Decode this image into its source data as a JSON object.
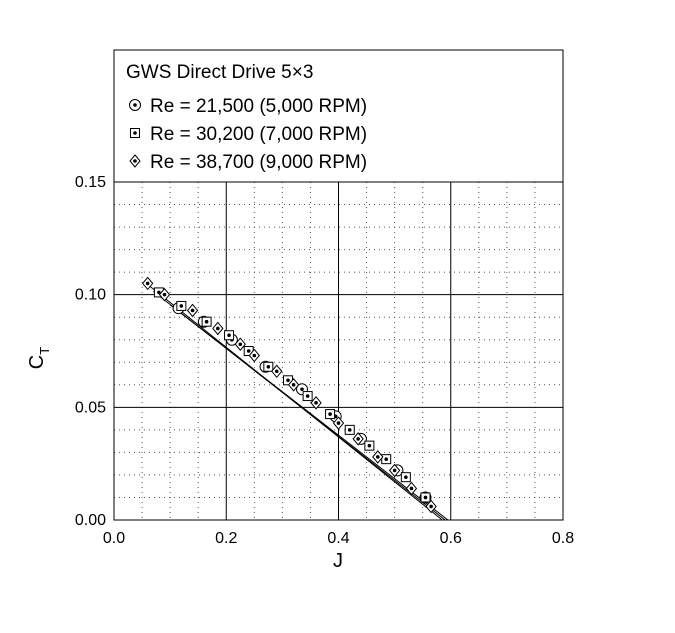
{
  "chart_data": {
    "type": "scatter",
    "title": "GWS Direct Drive 5×3",
    "xlabel": "J",
    "ylabel": {
      "main": "C",
      "sub": "T"
    },
    "xlim": [
      0.0,
      0.8
    ],
    "ylim": [
      0.0,
      0.15
    ],
    "xticks": [
      "0.0",
      "0.2",
      "0.4",
      "0.6",
      "0.8"
    ],
    "yticks": [
      "0.00",
      "0.05",
      "0.10",
      "0.15"
    ],
    "grid": {
      "major": true,
      "minor_dotted": true
    },
    "legend_position": "top",
    "series": [
      {
        "name": "Re = 21,500 (5,000 RPM)",
        "marker": "circle-dot",
        "x": [
          0.115,
          0.16,
          0.21,
          0.27,
          0.335,
          0.395,
          0.44,
          0.505,
          0.555
        ],
        "y": [
          0.094,
          0.088,
          0.08,
          0.068,
          0.058,
          0.046,
          0.036,
          0.022,
          0.01
        ],
        "fit": [
          [
            0.1,
            0.0955
          ],
          [
            0.595,
            0.0
          ]
        ]
      },
      {
        "name": "Re = 30,200 (7,000 RPM)",
        "marker": "square-dot",
        "x": [
          0.08,
          0.12,
          0.165,
          0.205,
          0.24,
          0.275,
          0.31,
          0.345,
          0.385,
          0.42,
          0.455,
          0.485,
          0.52,
          0.555
        ],
        "y": [
          0.101,
          0.095,
          0.088,
          0.082,
          0.075,
          0.068,
          0.062,
          0.055,
          0.047,
          0.04,
          0.033,
          0.027,
          0.019,
          0.01
        ],
        "fit": [
          [
            0.07,
            0.1015
          ],
          [
            0.59,
            0.0
          ]
        ]
      },
      {
        "name": "Re = 38,700 (9,000 RPM)",
        "marker": "diamond-dot",
        "x": [
          0.06,
          0.09,
          0.14,
          0.185,
          0.225,
          0.25,
          0.29,
          0.32,
          0.36,
          0.4,
          0.435,
          0.47,
          0.5,
          0.53,
          0.565
        ],
        "y": [
          0.105,
          0.1,
          0.093,
          0.085,
          0.078,
          0.073,
          0.066,
          0.06,
          0.052,
          0.043,
          0.036,
          0.028,
          0.022,
          0.014,
          0.006
        ],
        "fit": [
          [
            0.06,
            0.1045
          ],
          [
            0.585,
            0.0
          ]
        ]
      }
    ]
  }
}
